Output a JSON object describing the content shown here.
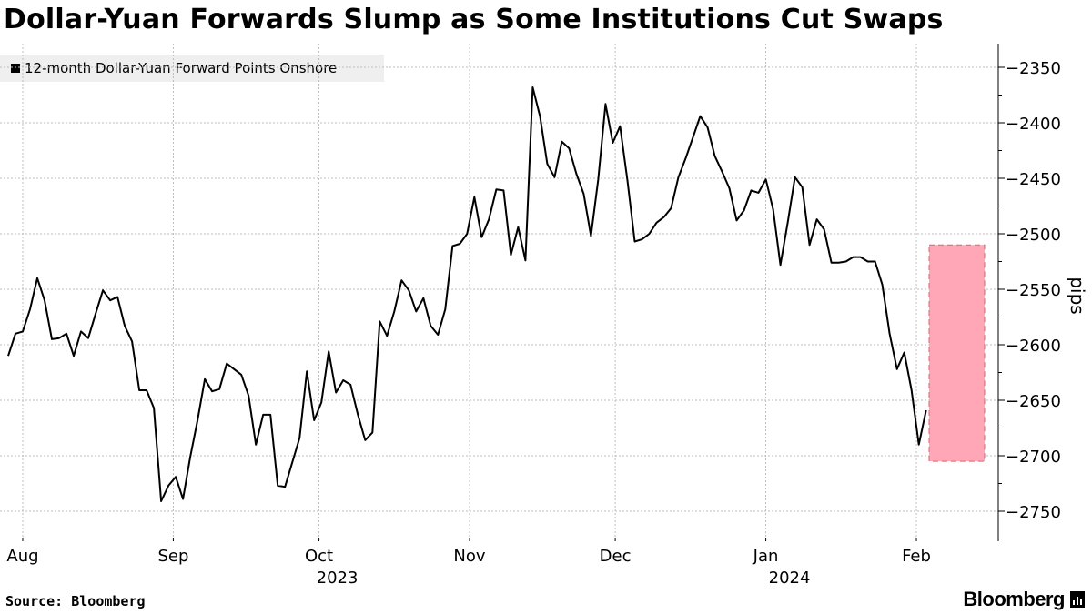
{
  "title": "Dollar-Yuan Forwards Slump as Some Institutions Cut Swaps",
  "source": "Source:  Bloomberg",
  "brand": "Bloomberg",
  "brand_icon": "bloomberg-terminal-icon",
  "colors": {
    "line": "#000000",
    "highlight_fill": "#ffa6b7",
    "highlight_border": "#e0606e",
    "grid": "#bdbdbd",
    "legend_bg": "#efefef"
  },
  "chart_data": {
    "type": "line",
    "title": "Dollar-Yuan Forwards Slump as Some Institutions Cut Swaps",
    "ylabel": "pips",
    "xlabel": "",
    "ylim": [
      -2775,
      -2330
    ],
    "yticks": [
      -2350,
      -2400,
      -2450,
      -2500,
      -2550,
      -2600,
      -2650,
      -2700,
      -2750
    ],
    "grid": true,
    "legend_position": "top-left",
    "x_start_day": 0,
    "x_end_day": 193,
    "x_ticks": [
      {
        "label": "Aug",
        "day": 3
      },
      {
        "label": "Sep",
        "day": 34
      },
      {
        "label": "Oct",
        "day": 64
      },
      {
        "label": "Nov",
        "day": 95
      },
      {
        "label": "Dec",
        "day": 125
      },
      {
        "label": "Jan",
        "day": 156
      },
      {
        "label": "Feb",
        "day": 187
      }
    ],
    "year_labels": [
      {
        "label": "2023",
        "day": 64
      },
      {
        "label": "2024",
        "day": 159
      }
    ],
    "x_gridlines_day": [
      3,
      34,
      64,
      95,
      125,
      156,
      187
    ],
    "highlight": {
      "x_start_day": 181,
      "x_end_day": 193,
      "y_top": -2510,
      "y_bottom": -2705
    },
    "series": [
      {
        "name": "12-month Dollar-Yuan Forward Points Onshore",
        "points": [
          [
            0,
            -2610
          ],
          [
            1.5,
            -2590
          ],
          [
            3,
            -2588
          ],
          [
            4.5,
            -2568
          ],
          [
            6,
            -2540
          ],
          [
            7.5,
            -2560
          ],
          [
            9,
            -2595
          ],
          [
            10.5,
            -2594
          ],
          [
            12,
            -2590
          ],
          [
            13.5,
            -2610
          ],
          [
            15,
            -2588
          ],
          [
            16.5,
            -2594
          ],
          [
            18,
            -2572
          ],
          [
            19.5,
            -2551
          ],
          [
            21,
            -2560
          ],
          [
            22.5,
            -2557
          ],
          [
            24,
            -2583
          ],
          [
            25.5,
            -2597
          ],
          [
            27,
            -2641
          ],
          [
            28.5,
            -2641
          ],
          [
            30,
            -2657
          ],
          [
            31.5,
            -2741
          ],
          [
            33,
            -2727
          ],
          [
            34.5,
            -2719
          ],
          [
            36,
            -2739
          ],
          [
            37.5,
            -2701
          ],
          [
            39,
            -2668
          ],
          [
            40.5,
            -2631
          ],
          [
            42,
            -2642
          ],
          [
            43.5,
            -2640
          ],
          [
            45,
            -2617
          ],
          [
            46.5,
            -2622
          ],
          [
            48,
            -2627
          ],
          [
            49.5,
            -2646
          ],
          [
            51,
            -2690
          ],
          [
            52.5,
            -2663
          ],
          [
            54,
            -2663
          ],
          [
            55.5,
            -2727
          ],
          [
            57,
            -2728
          ],
          [
            58.5,
            -2706
          ],
          [
            60,
            -2684
          ],
          [
            61.5,
            -2624
          ],
          [
            63,
            -2668
          ],
          [
            64.5,
            -2652
          ],
          [
            66,
            -2606
          ],
          [
            67.5,
            -2643
          ],
          [
            69,
            -2632
          ],
          [
            70.5,
            -2636
          ],
          [
            72,
            -2663
          ],
          [
            73.5,
            -2686
          ],
          [
            75,
            -2679
          ],
          [
            76.5,
            -2579
          ],
          [
            78,
            -2592
          ],
          [
            79.5,
            -2570
          ],
          [
            81,
            -2542
          ],
          [
            82.5,
            -2551
          ],
          [
            84,
            -2570
          ],
          [
            85.5,
            -2558
          ],
          [
            87,
            -2583
          ],
          [
            88.5,
            -2591
          ],
          [
            90,
            -2568
          ],
          [
            91.5,
            -2511
          ],
          [
            93,
            -2509
          ],
          [
            94.5,
            -2500
          ],
          [
            96,
            -2467
          ],
          [
            97.5,
            -2503
          ],
          [
            99,
            -2487
          ],
          [
            100.5,
            -2460
          ],
          [
            102,
            -2461
          ],
          [
            103.5,
            -2519
          ],
          [
            105,
            -2494
          ],
          [
            106.5,
            -2524
          ],
          [
            108,
            -2368
          ],
          [
            109.5,
            -2394
          ],
          [
            111,
            -2437
          ],
          [
            112.5,
            -2449
          ],
          [
            114,
            -2417
          ],
          [
            115.5,
            -2423
          ],
          [
            117,
            -2446
          ],
          [
            118.5,
            -2464
          ],
          [
            120,
            -2502
          ],
          [
            121.5,
            -2451
          ],
          [
            123,
            -2383
          ],
          [
            124.5,
            -2418
          ],
          [
            126,
            -2403
          ],
          [
            127.5,
            -2452
          ],
          [
            129,
            -2507
          ],
          [
            130.5,
            -2505
          ],
          [
            132,
            -2500
          ],
          [
            133.5,
            -2490
          ],
          [
            135,
            -2485
          ],
          [
            136.5,
            -2477
          ],
          [
            138,
            -2449
          ],
          [
            139.5,
            -2432
          ],
          [
            141,
            -2413
          ],
          [
            142.5,
            -2394
          ],
          [
            144,
            -2404
          ],
          [
            145.5,
            -2430
          ],
          [
            147,
            -2444
          ],
          [
            148.5,
            -2459
          ],
          [
            150,
            -2488
          ],
          [
            151.5,
            -2479
          ],
          [
            153,
            -2461
          ],
          [
            154.5,
            -2463
          ],
          [
            156,
            -2451
          ],
          [
            157.5,
            -2478
          ],
          [
            159,
            -2528
          ],
          [
            160.5,
            -2490
          ],
          [
            162,
            -2449
          ],
          [
            163.5,
            -2458
          ],
          [
            165,
            -2510
          ],
          [
            166.5,
            -2487
          ],
          [
            168,
            -2496
          ],
          [
            169.5,
            -2526
          ],
          [
            171,
            -2526
          ],
          [
            172.5,
            -2525
          ],
          [
            174,
            -2521
          ],
          [
            175.5,
            -2521
          ],
          [
            177,
            -2525
          ],
          [
            178.5,
            -2525
          ],
          [
            180,
            -2546
          ],
          [
            181.5,
            -2590
          ],
          [
            183,
            -2622
          ],
          [
            184.5,
            -2607
          ],
          [
            186,
            -2641
          ],
          [
            187.5,
            -2690
          ],
          [
            189,
            -2659
          ]
        ]
      }
    ]
  }
}
